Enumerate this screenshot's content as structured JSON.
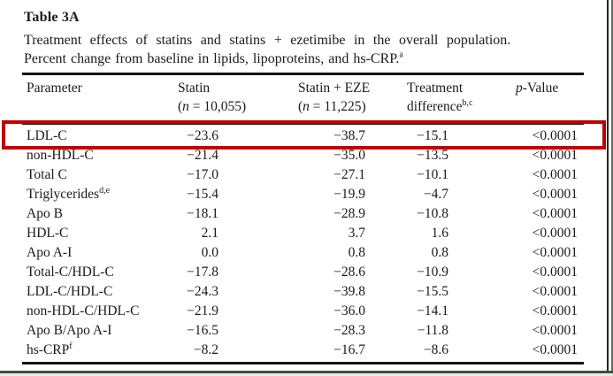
{
  "page": {
    "title": "Table 3A",
    "caption_line1": "Treatment effects of statins and statins + ezetimibe in the overall population.",
    "caption_line2": "Percent change from baseline in lipids, lipoproteins, and hs-CRP.",
    "caption_sup": "a"
  },
  "table": {
    "header": {
      "parameter": "Parameter",
      "statin": "Statin",
      "statin_n": {
        "pre": "(",
        "it": "n",
        "post": " = 10,055)"
      },
      "eze": "Statin + EZE",
      "eze_n": {
        "pre": "(",
        "it": "n",
        "post": " = 11,225)"
      },
      "treatment_line1": "Treatment",
      "treatment_line2": "difference",
      "treatment_sup": "b,c",
      "pvalue_it": "p",
      "pvalue_rest": "-Value"
    },
    "rows": [
      {
        "parameter": "LDL-C",
        "sup": "",
        "statin": "−23.6",
        "eze": "−38.7",
        "diff": "−15.1",
        "p": "<0.0001",
        "highlighted": true
      },
      {
        "parameter": "non-HDL-C",
        "sup": "",
        "statin": "−21.4",
        "eze": "−35.0",
        "diff": "−13.5",
        "p": "<0.0001",
        "highlighted": false
      },
      {
        "parameter": "Total C",
        "sup": "",
        "statin": "−17.0",
        "eze": "−27.1",
        "diff": "−10.1",
        "p": "<0.0001",
        "highlighted": false
      },
      {
        "parameter": "Triglycerides",
        "sup": "d,e",
        "statin": "−15.4",
        "eze": "−19.9",
        "diff": "−4.7",
        "p": "<0.0001",
        "highlighted": false
      },
      {
        "parameter": "Apo B",
        "sup": "",
        "statin": "−18.1",
        "eze": "−28.9",
        "diff": "−10.8",
        "p": "<0.0001",
        "highlighted": false
      },
      {
        "parameter": "HDL-C",
        "sup": "",
        "statin": "2.1",
        "eze": "3.7",
        "diff": "1.6",
        "p": "<0.0001",
        "highlighted": false
      },
      {
        "parameter": "Apo A-I",
        "sup": "",
        "statin": "0.0",
        "eze": "0.8",
        "diff": "0.8",
        "p": "<0.0001",
        "highlighted": false
      },
      {
        "parameter": "Total-C/HDL-C",
        "sup": "",
        "statin": "−17.8",
        "eze": "−28.6",
        "diff": "−10.9",
        "p": "<0.0001",
        "highlighted": false
      },
      {
        "parameter": "LDL-C/HDL-C",
        "sup": "",
        "statin": "−24.3",
        "eze": "−39.8",
        "diff": "−15.5",
        "p": "<0.0001",
        "highlighted": false
      },
      {
        "parameter": "non-HDL-C/HDL-C",
        "sup": "",
        "statin": "−21.9",
        "eze": "−36.0",
        "diff": "−14.1",
        "p": "<0.0001",
        "highlighted": false
      },
      {
        "parameter": "Apo B/Apo A-I",
        "sup": "",
        "statin": "−16.5",
        "eze": "−28.3",
        "diff": "−11.8",
        "p": "<0.0001",
        "highlighted": false
      },
      {
        "parameter": "hs-CRP",
        "sup": "f",
        "statin": "−8.2",
        "eze": "−16.7",
        "diff": "−8.6",
        "p": "<0.0001",
        "highlighted": false
      }
    ]
  },
  "colors": {
    "highlight_box": "#c00000",
    "table_rule": "#151515",
    "frame_right": "#262626",
    "frame_green": "#5e7054"
  }
}
